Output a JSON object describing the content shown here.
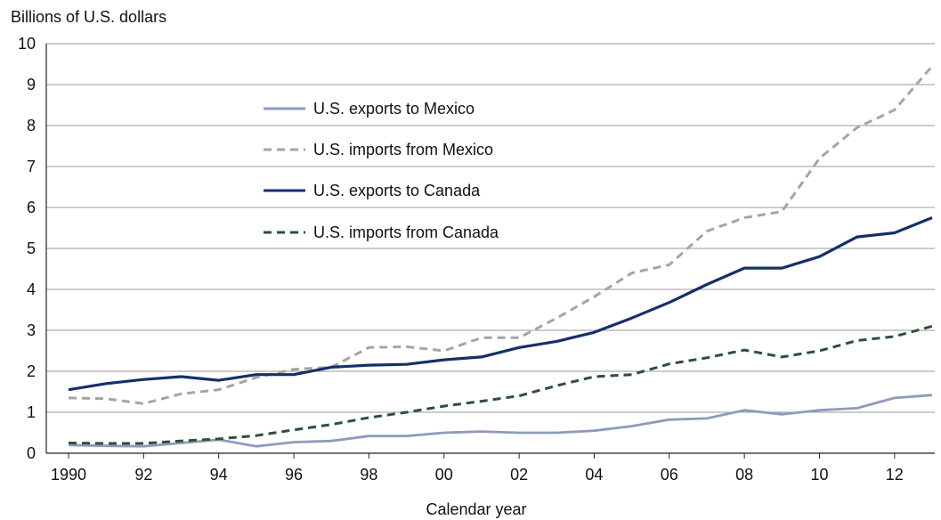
{
  "chart_data": {
    "type": "line",
    "ylabel": "Billions of U.S. dollars",
    "xlabel": "Calendar year",
    "ylim": [
      0,
      10
    ],
    "xlim": [
      1990,
      2013
    ],
    "y_ticks": [
      "0",
      "1",
      "2",
      "3",
      "4",
      "5",
      "6",
      "7",
      "8",
      "9",
      "10"
    ],
    "x_ticks": [
      {
        "value": 1990,
        "label": "1990"
      },
      {
        "value": 1992,
        "label": "92"
      },
      {
        "value": 1994,
        "label": "94"
      },
      {
        "value": 1996,
        "label": "96"
      },
      {
        "value": 1998,
        "label": "98"
      },
      {
        "value": 2000,
        "label": "00"
      },
      {
        "value": 2002,
        "label": "02"
      },
      {
        "value": 2004,
        "label": "04"
      },
      {
        "value": 2006,
        "label": "06"
      },
      {
        "value": 2008,
        "label": "08"
      },
      {
        "value": 2010,
        "label": "10"
      },
      {
        "value": 2012,
        "label": "12"
      }
    ],
    "grid": "horizontal",
    "legend_position": "top-left",
    "x": [
      1990,
      1991,
      1992,
      1993,
      1994,
      1995,
      1996,
      1997,
      1998,
      1999,
      2000,
      2001,
      2002,
      2003,
      2004,
      2005,
      2006,
      2007,
      2008,
      2009,
      2010,
      2011,
      2012,
      2013
    ],
    "series": [
      {
        "name": "U.S. exports to Mexico",
        "color": "#8e9bbb",
        "style": "solid",
        "values": [
          0.2,
          0.18,
          0.17,
          0.25,
          0.33,
          0.17,
          0.27,
          0.3,
          0.42,
          0.42,
          0.5,
          0.53,
          0.5,
          0.5,
          0.55,
          0.66,
          0.82,
          0.85,
          1.05,
          0.95,
          1.05,
          1.1,
          1.35,
          1.42
        ]
      },
      {
        "name": "U.S. imports from Mexico",
        "color": "#a3a6a3",
        "style": "dashed",
        "values": [
          1.35,
          1.33,
          1.21,
          1.45,
          1.55,
          1.85,
          2.05,
          2.1,
          2.58,
          2.6,
          2.5,
          2.82,
          2.82,
          3.3,
          3.82,
          4.4,
          4.6,
          5.42,
          5.75,
          5.9,
          7.2,
          7.95,
          8.38,
          9.45
        ]
      },
      {
        "name": "U.S. exports to Canada",
        "color": "#14306a",
        "style": "solid",
        "values": [
          1.55,
          1.7,
          1.8,
          1.87,
          1.78,
          1.92,
          1.92,
          2.1,
          2.15,
          2.17,
          2.28,
          2.35,
          2.58,
          2.73,
          2.95,
          3.3,
          3.68,
          4.12,
          4.52,
          4.52,
          4.8,
          5.28,
          5.38,
          5.75
        ]
      },
      {
        "name": "U.S. imports from Canada",
        "color": "#2c5234",
        "style": "dashed",
        "values": [
          0.25,
          0.24,
          0.24,
          0.3,
          0.35,
          0.43,
          0.57,
          0.7,
          0.87,
          1.0,
          1.15,
          1.27,
          1.4,
          1.65,
          1.87,
          1.92,
          2.18,
          2.33,
          2.52,
          2.35,
          2.5,
          2.75,
          2.85,
          3.1
        ]
      }
    ]
  }
}
